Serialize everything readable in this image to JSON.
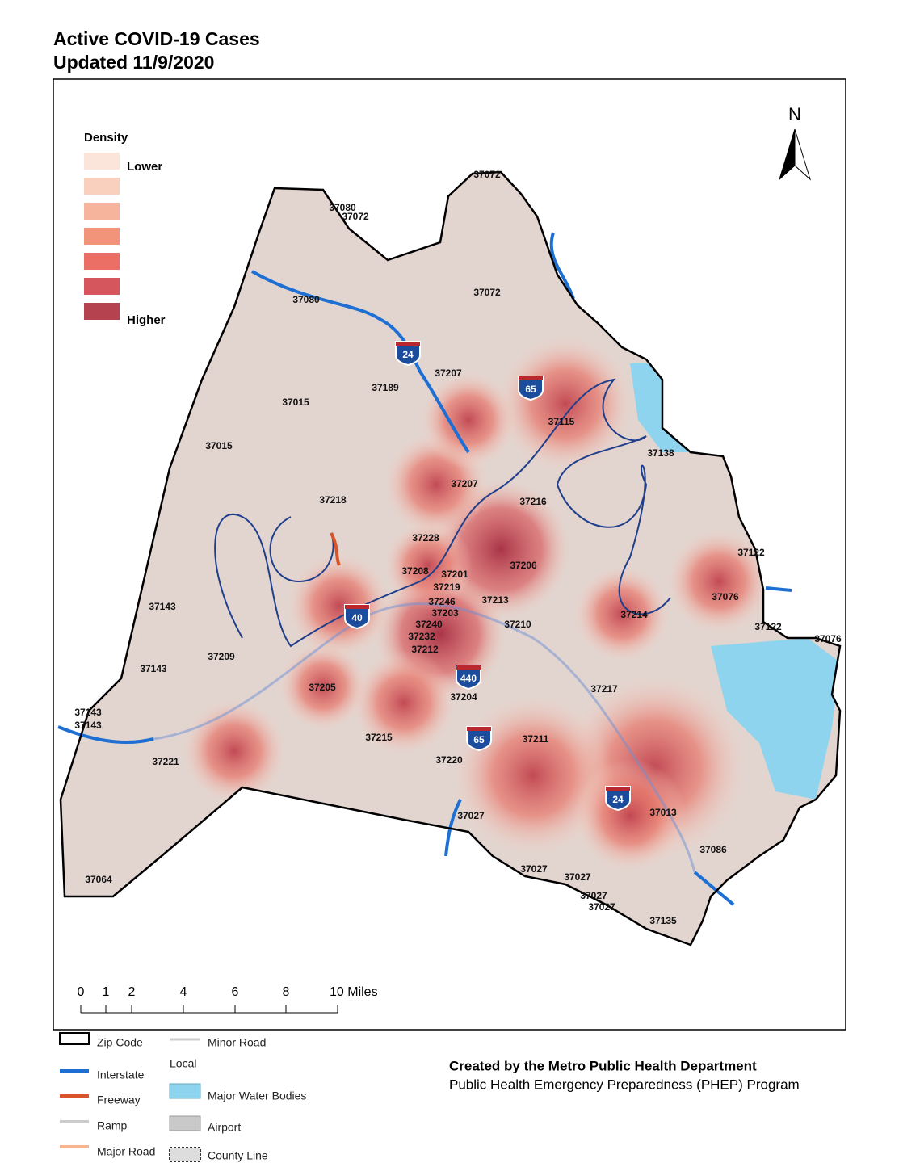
{
  "header": {
    "title": "Active COVID-19 Cases",
    "subtitle": "Updated 11/9/2020"
  },
  "north_arrow": {
    "label": "N"
  },
  "density_legend": {
    "title": "Density",
    "low_label": "Lower",
    "high_label": "Higher",
    "colors": [
      "#fbe4da",
      "#f9cfbe",
      "#f7b49c",
      "#f29479",
      "#eb6f64",
      "#d6565e",
      "#b4424f"
    ]
  },
  "zip_labels": [
    "37072",
    "37080",
    "37072",
    "37072",
    "37080",
    "37207",
    "37189",
    "37015",
    "37015",
    "37115",
    "37138",
    "37207",
    "37218",
    "37216",
    "37228",
    "37206",
    "37208",
    "37201",
    "37219",
    "37246",
    "37213",
    "37203",
    "37240",
    "37232",
    "37212",
    "37210",
    "37214",
    "37076",
    "37122",
    "37143",
    "37143",
    "37209",
    "37205",
    "37204",
    "37217",
    "37122",
    "37076",
    "37143",
    "37143",
    "37221",
    "37215",
    "37220",
    "37211",
    "37013",
    "37027",
    "37086",
    "37027",
    "37027",
    "37027",
    "37027",
    "37135",
    "37064"
  ],
  "shields": [
    "24",
    "65",
    "40",
    "440",
    "65",
    "24"
  ],
  "scale_bar": {
    "labels": [
      "0",
      "1",
      "2",
      "4",
      "6",
      "8",
      "10 Miles"
    ]
  },
  "map_legend": [
    "Zip Code",
    "Interstate",
    "Freeway",
    "Ramp",
    "Major Road",
    "Minor Road",
    "Local",
    "Major Water Bodies",
    "Airport",
    "County Line"
  ],
  "credits": {
    "line1": "Created by the Metro Public Health Department",
    "line2": "Public Health Emergency Preparedness (PHEP) Program"
  }
}
